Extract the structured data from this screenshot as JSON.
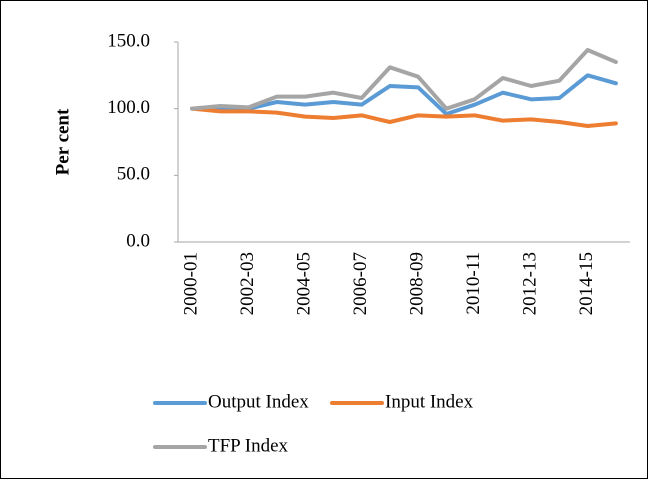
{
  "chart_data": {
    "type": "line",
    "ylabel": "Per cent",
    "categories": [
      "2000-01",
      null,
      "2002-03",
      null,
      "2004-05",
      null,
      "2006-07",
      null,
      "2008-09",
      null,
      "2010-11",
      null,
      "2012-13",
      null,
      "2014-15",
      null
    ],
    "series": [
      {
        "name": "Output Index",
        "color": "#5b9bd5",
        "values": [
          100,
          101,
          100,
          105,
          103,
          105,
          103,
          117,
          116,
          96,
          103,
          112,
          107,
          108,
          125,
          119
        ]
      },
      {
        "name": "Input Index",
        "color": "#ed7d31",
        "values": [
          100,
          98,
          98,
          97,
          94,
          93,
          95,
          90,
          95,
          94,
          95,
          91,
          92,
          90,
          87,
          89
        ]
      },
      {
        "name": "TFP Index",
        "color": "#a5a5a5",
        "values": [
          100,
          102,
          101,
          109,
          109,
          112,
          108,
          131,
          124,
          100,
          107,
          123,
          117,
          121,
          144,
          135
        ]
      }
    ],
    "ylim": [
      0,
      150
    ],
    "yticks": [
      {
        "value": 0,
        "label": "0.0"
      },
      {
        "value": 50,
        "label": "50.0"
      },
      {
        "value": 100,
        "label": "100.0"
      },
      {
        "value": 150,
        "label": "150.0"
      }
    ],
    "grid": false
  }
}
